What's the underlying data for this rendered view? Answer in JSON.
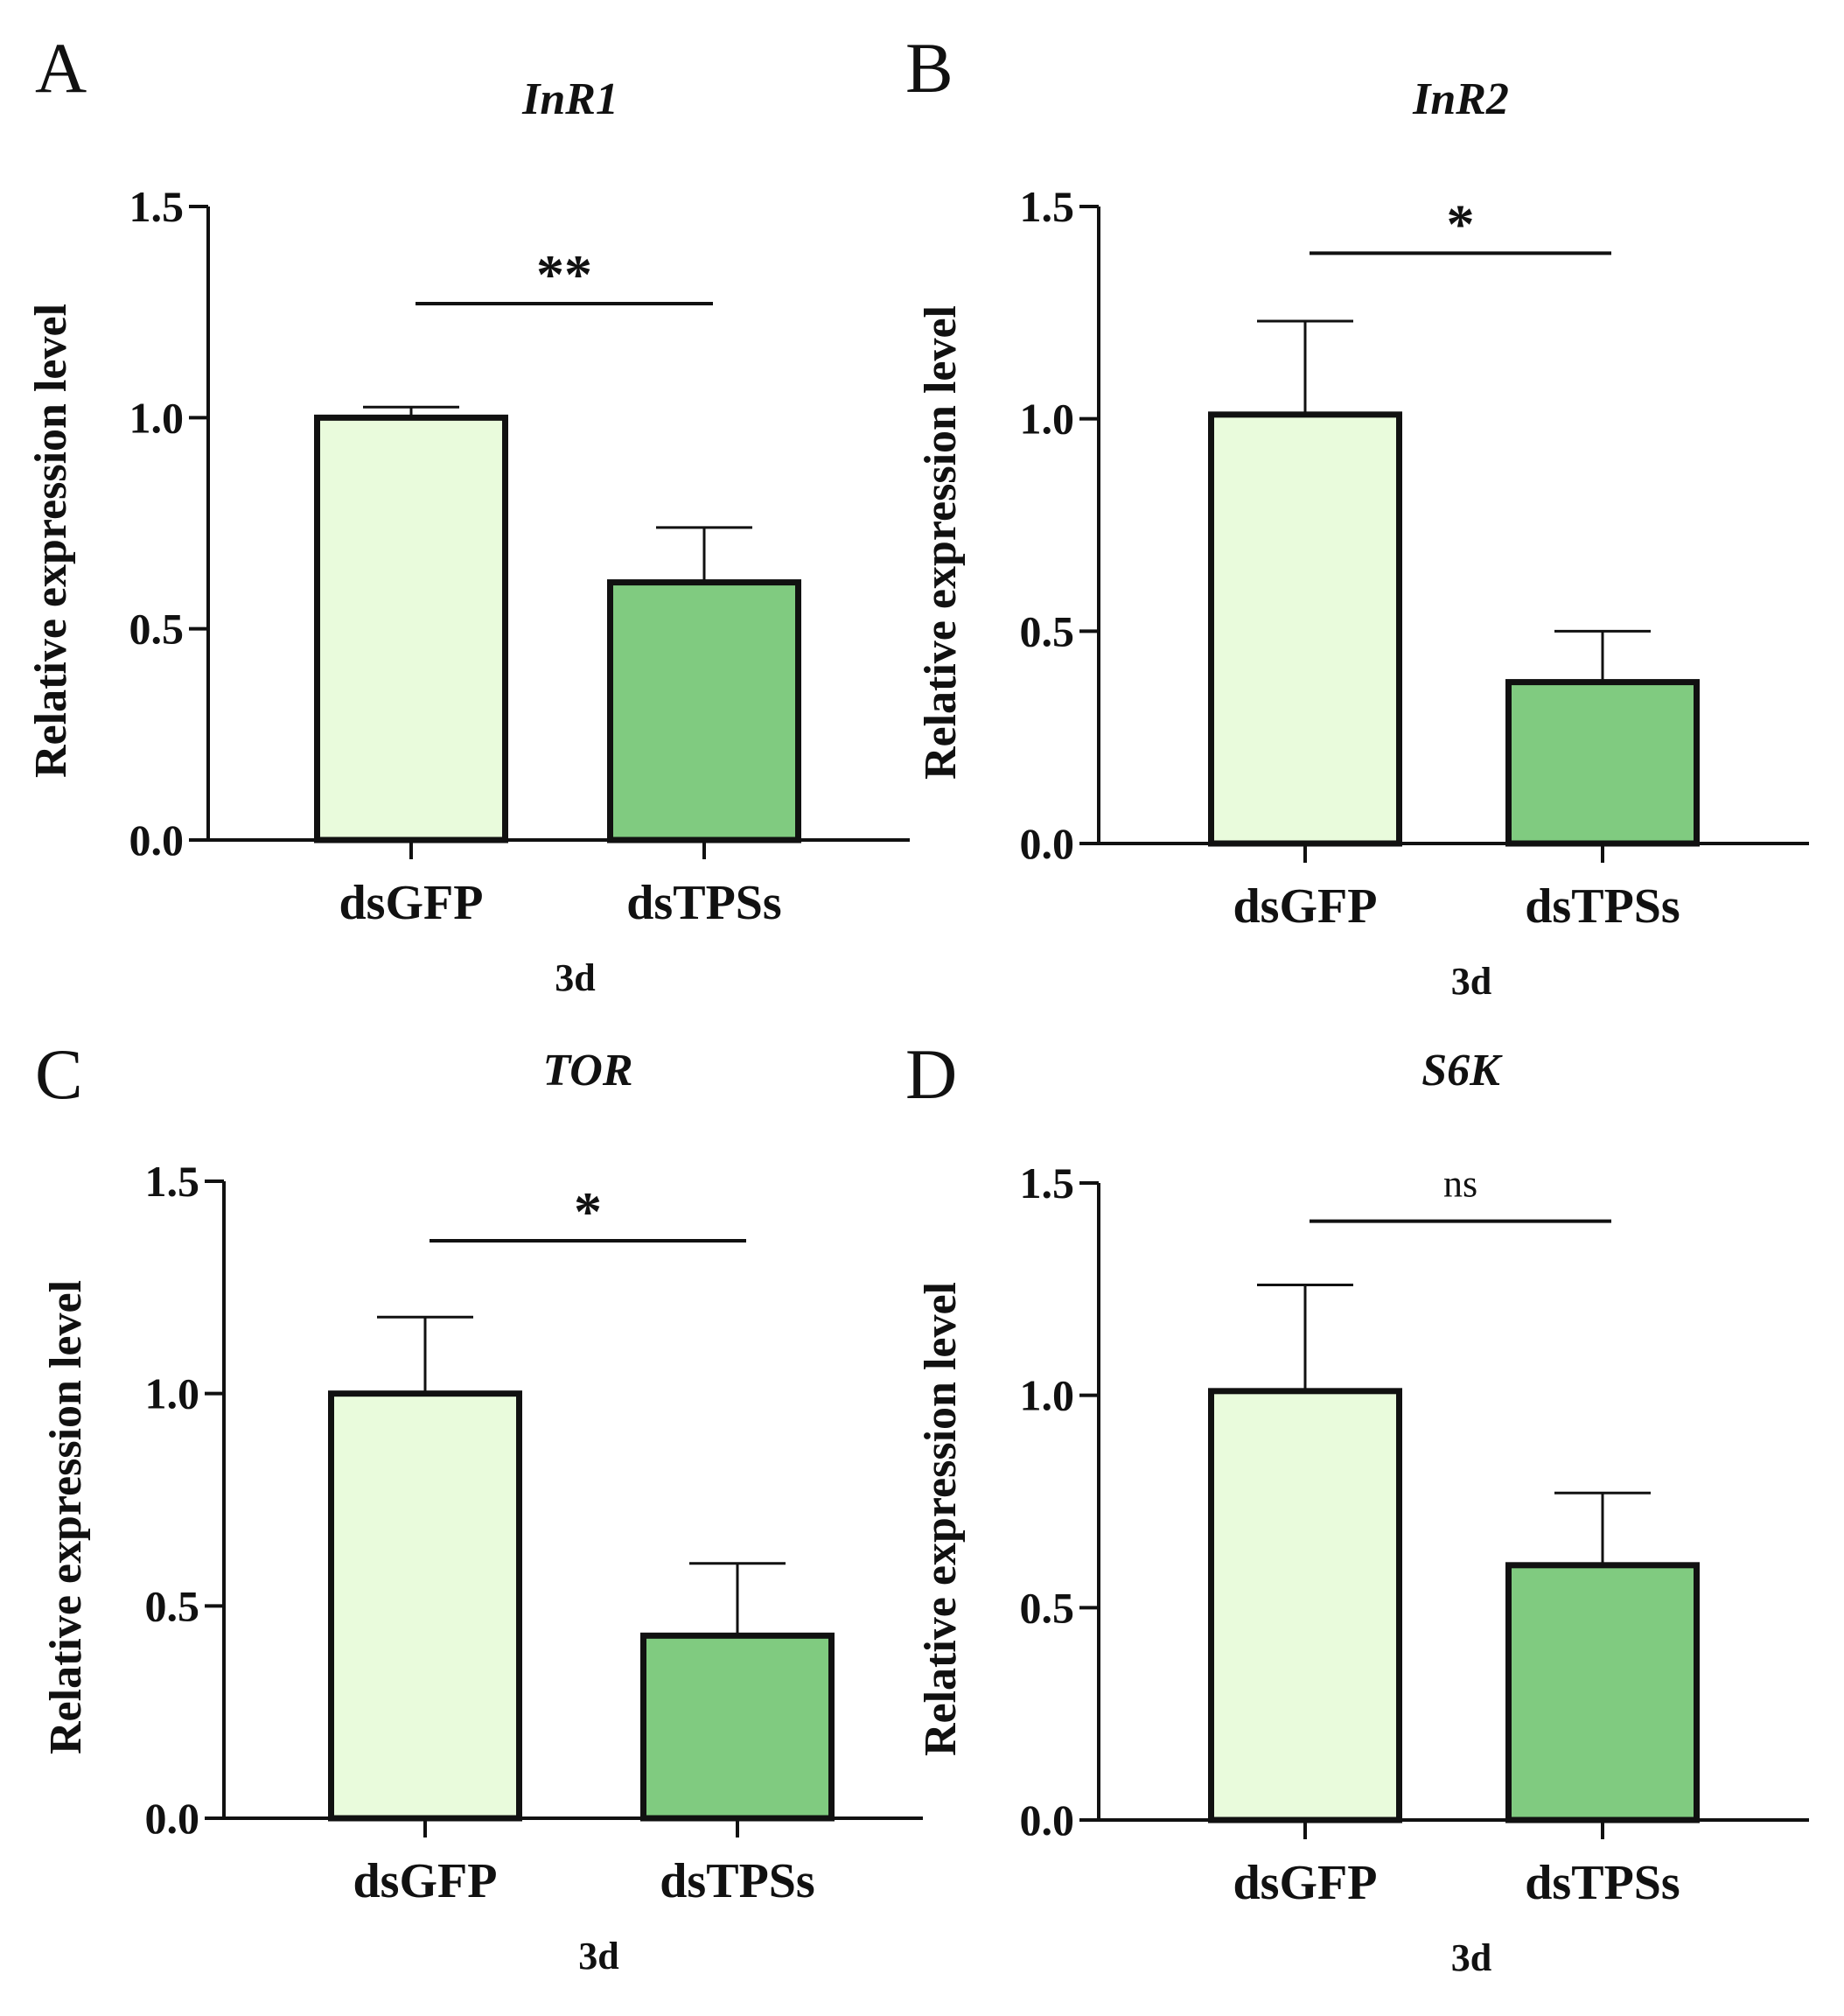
{
  "figure": {
    "fill_colors": [
      "#e9fbdc",
      "#80cb80"
    ],
    "edge_color": "#111111"
  },
  "chart_data": [
    {
      "type": "bar",
      "panel": "A",
      "title": "InR1",
      "categories": [
        "dsGFP",
        "dsTPSs"
      ],
      "values": [
        1.0,
        0.61
      ],
      "errors": [
        0.025,
        0.13
      ],
      "xlabel": "3d",
      "ylabel": "Relative expression level",
      "ylim": [
        0,
        1.5
      ],
      "yticks": [
        "0.0",
        "0.5",
        "1.0",
        "1.5"
      ],
      "significance": {
        "label": "**",
        "y": 1.27
      }
    },
    {
      "type": "bar",
      "panel": "B",
      "title": "InR2",
      "categories": [
        "dsGFP",
        "dsTPSs"
      ],
      "values": [
        1.01,
        0.38
      ],
      "errors": [
        0.22,
        0.12
      ],
      "xlabel": "3d",
      "ylabel": "Relative expression level",
      "ylim": [
        0,
        1.5
      ],
      "yticks": [
        "0.0",
        "0.5",
        "1.0",
        "1.5"
      ],
      "significance": {
        "label": "*",
        "y": 1.39
      }
    },
    {
      "type": "bar",
      "panel": "C",
      "title": "TOR",
      "categories": [
        "dsGFP",
        "dsTPSs"
      ],
      "values": [
        1.0,
        0.43
      ],
      "errors": [
        0.18,
        0.17
      ],
      "xlabel": "3d",
      "ylabel": "Relative expression level",
      "ylim": [
        0,
        1.5
      ],
      "yticks": [
        "0.0",
        "0.5",
        "1.0",
        "1.5"
      ],
      "significance": {
        "label": "*",
        "y": 1.36
      }
    },
    {
      "type": "bar",
      "panel": "D",
      "title": "S6K",
      "categories": [
        "dsGFP",
        "dsTPSs"
      ],
      "values": [
        1.01,
        0.6
      ],
      "errors": [
        0.25,
        0.17
      ],
      "xlabel": "3d",
      "ylabel": "Relative expression level",
      "ylim": [
        0,
        1.5
      ],
      "yticks": [
        "0.0",
        "0.5",
        "1.0",
        "1.5"
      ],
      "significance": {
        "label": "ns",
        "y": 1.41
      }
    }
  ]
}
